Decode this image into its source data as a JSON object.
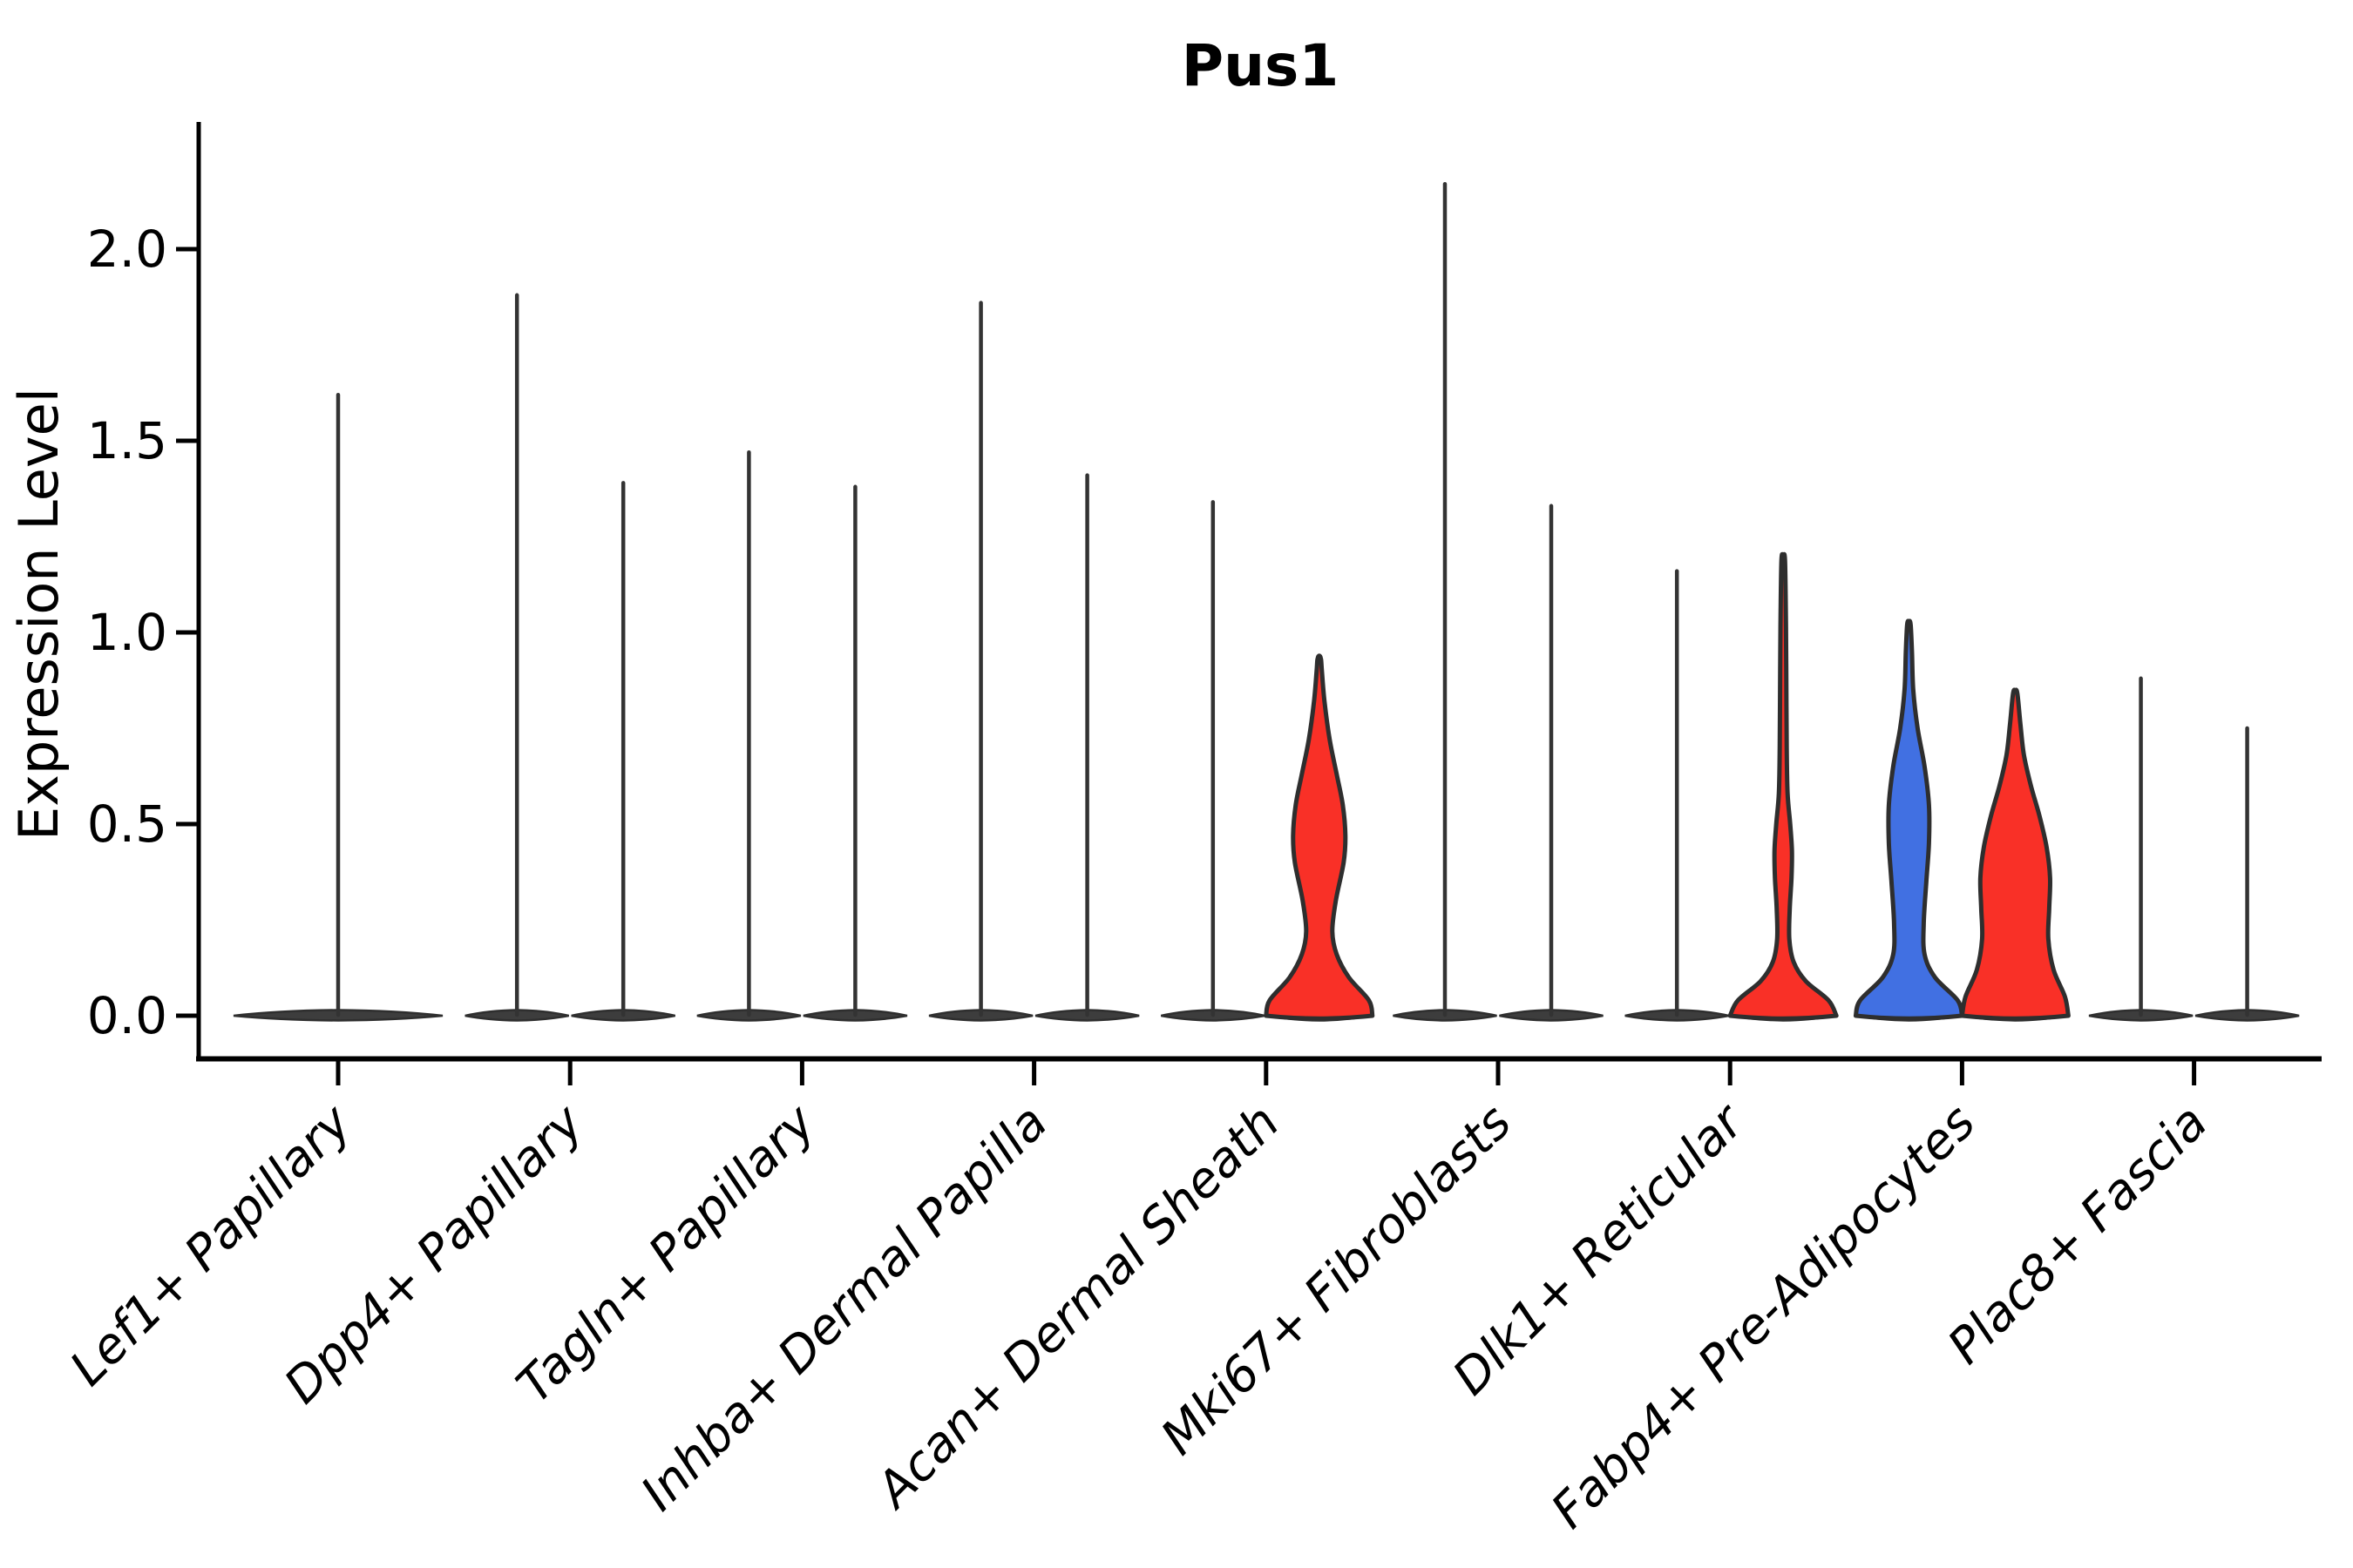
{
  "figure": {
    "title": "Pus1",
    "ylabel": "Expression Level"
  },
  "chart_data": {
    "type": "violin",
    "title": "Pus1",
    "xlabel": "",
    "ylabel": "Expression Level",
    "ytick_labels": [
      "0.0",
      "0.5",
      "1.0",
      "1.5",
      "2.0"
    ],
    "ytick_values": [
      0.0,
      0.5,
      1.0,
      1.5,
      2.0
    ],
    "ylim": [
      -0.12,
      2.33
    ],
    "grid": false,
    "legend_position": "none",
    "x_tick_rotation_deg": 45,
    "colors": {
      "red": "#F93027",
      "blue": "#4170E2",
      "spike_stroke": "#333333",
      "outline": "#2E2E2E",
      "flat_fill": "#3D3D3D",
      "axis": "#000000",
      "background": "#FFFFFF"
    },
    "categories": [
      {
        "label": "Lef1+ Papillary",
        "violins": [
          {
            "slot": "center",
            "kind": "spike",
            "color": "dark",
            "max": 1.62
          }
        ]
      },
      {
        "label": "Dpp4+ Papillary",
        "violins": [
          {
            "slot": "left",
            "kind": "spike",
            "color": "dark",
            "max": 1.88
          },
          {
            "slot": "right",
            "kind": "spike",
            "color": "dark",
            "max": 1.39
          }
        ]
      },
      {
        "label": "Tagln+ Papillary",
        "violins": [
          {
            "slot": "left",
            "kind": "spike",
            "color": "dark",
            "max": 1.47
          },
          {
            "slot": "right",
            "kind": "spike",
            "color": "dark",
            "max": 1.38
          }
        ]
      },
      {
        "label": "Inhba+ Dermal Papilla",
        "violins": [
          {
            "slot": "left",
            "kind": "spike",
            "color": "dark",
            "max": 1.86
          },
          {
            "slot": "right",
            "kind": "spike",
            "color": "dark",
            "max": 1.41
          }
        ]
      },
      {
        "label": "Acan+ Dermal Sheath",
        "violins": [
          {
            "slot": "left",
            "kind": "spike",
            "color": "dark",
            "max": 1.34
          },
          {
            "slot": "right",
            "kind": "body",
            "color": "red",
            "max": 0.93,
            "profile": [
              [
                0,
                61
              ],
              [
                0.04,
                57
              ],
              [
                0.1,
                34
              ],
              [
                0.16,
                20
              ],
              [
                0.22,
                15
              ],
              [
                0.3,
                19
              ],
              [
                0.4,
                28
              ],
              [
                0.47,
                30
              ],
              [
                0.55,
                27
              ],
              [
                0.63,
                20
              ],
              [
                0.72,
                12
              ],
              [
                0.82,
                6
              ],
              [
                0.9,
                3
              ],
              [
                0.93,
                2
              ]
            ]
          }
        ]
      },
      {
        "label": "Mki67+ Fibroblasts",
        "violins": [
          {
            "slot": "left",
            "kind": "spike",
            "color": "dark",
            "max": 2.17
          },
          {
            "slot": "right",
            "kind": "spike",
            "color": "dark",
            "max": 1.33
          }
        ]
      },
      {
        "label": "Dlk1+ Reticular",
        "violins": [
          {
            "slot": "left",
            "kind": "spike",
            "color": "dark",
            "max": 1.16
          },
          {
            "slot": "right",
            "kind": "body",
            "color": "red",
            "max": 1.19,
            "profile": [
              [
                0,
                61
              ],
              [
                0.04,
                52
              ],
              [
                0.09,
                26
              ],
              [
                0.14,
                12
              ],
              [
                0.2,
                7
              ],
              [
                0.28,
                7.5
              ],
              [
                0.36,
                9.5
              ],
              [
                0.43,
                10
              ],
              [
                0.5,
                8
              ],
              [
                0.58,
                5
              ],
              [
                0.7,
                4
              ],
              [
                0.9,
                3.5
              ],
              [
                1.05,
                3
              ],
              [
                1.19,
                2
              ]
            ]
          }
        ]
      },
      {
        "label": "Fabp4+ Pre-Adipocytes",
        "violins": [
          {
            "slot": "left",
            "kind": "body",
            "color": "blue",
            "max": 1.02,
            "profile": [
              [
                0,
                61
              ],
              [
                0.04,
                56
              ],
              [
                0.1,
                30
              ],
              [
                0.16,
                18
              ],
              [
                0.24,
                17
              ],
              [
                0.35,
                20
              ],
              [
                0.45,
                23
              ],
              [
                0.55,
                23
              ],
              [
                0.65,
                18
              ],
              [
                0.75,
                10
              ],
              [
                0.85,
                5
              ],
              [
                0.95,
                3.5
              ],
              [
                1.02,
                2
              ]
            ]
          },
          {
            "slot": "right",
            "kind": "body",
            "color": "red",
            "max": 0.84,
            "profile": [
              [
                0,
                61
              ],
              [
                0.05,
                57
              ],
              [
                0.12,
                44
              ],
              [
                0.2,
                38
              ],
              [
                0.28,
                39
              ],
              [
                0.36,
                40
              ],
              [
                0.44,
                36
              ],
              [
                0.52,
                28
              ],
              [
                0.6,
                18
              ],
              [
                0.68,
                10
              ],
              [
                0.76,
                6
              ],
              [
                0.84,
                2.5
              ]
            ]
          }
        ]
      },
      {
        "label": "Plac8+ Fascia",
        "violins": [
          {
            "slot": "left",
            "kind": "spike",
            "color": "dark",
            "max": 0.88
          },
          {
            "slot": "right",
            "kind": "spike",
            "color": "dark",
            "max": 0.75
          }
        ]
      }
    ]
  }
}
